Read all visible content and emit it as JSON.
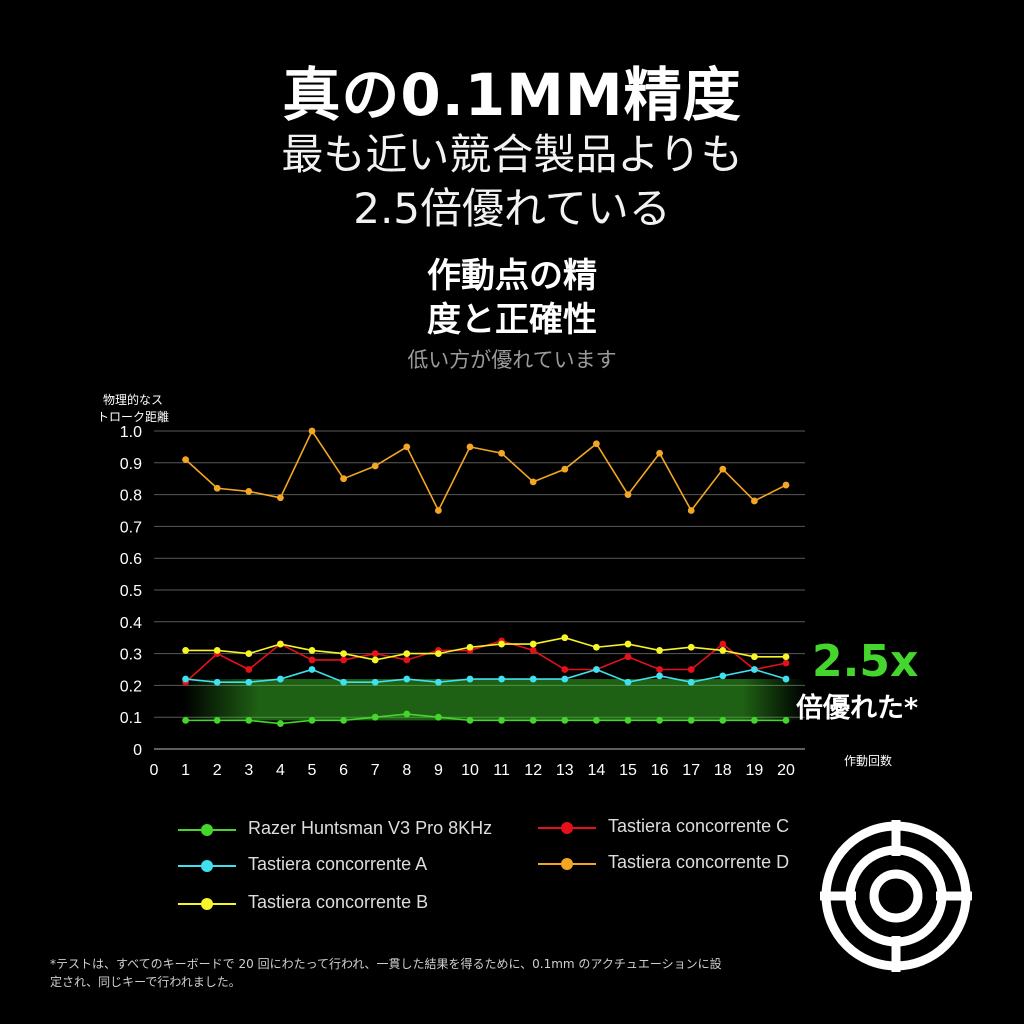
{
  "header": {
    "title": "真の0.1MM精度",
    "subtitle_line1": "最も近い競合製品よりも",
    "subtitle_line2": "2.5倍優れている",
    "section_line1": "作動点の精",
    "section_line2": "度と正確性",
    "section_note": "低い方が優れています"
  },
  "callout": {
    "value": "2.5x",
    "label": "倍優れた*"
  },
  "icons": {
    "target": "target-icon"
  },
  "footnote": {
    "line1": "*テストは、すべてのキーボードで 20 回にわたって行われ、一貫した結果を得るために、0.1mm のアクチュエーションに設",
    "line2": "定され、同じキーで行われました。"
  },
  "chart_data": {
    "type": "line",
    "ylabel_line1": "物理的なス",
    "ylabel_line2": "トローク距離",
    "xlabel": "作動回数",
    "x": [
      1,
      2,
      3,
      4,
      5,
      6,
      7,
      8,
      9,
      10,
      11,
      12,
      13,
      14,
      15,
      16,
      17,
      18,
      19,
      20
    ],
    "xlim": [
      0,
      20
    ],
    "ylim": [
      0,
      1.0
    ],
    "xticks": [
      "0",
      "1",
      "2",
      "3",
      "4",
      "5",
      "6",
      "7",
      "8",
      "9",
      "10",
      "11",
      "12",
      "13",
      "14",
      "15",
      "16",
      "17",
      "18",
      "19",
      "20"
    ],
    "yticks": [
      "0",
      "0.1",
      "0.2",
      "0.3",
      "0.4",
      "0.5",
      "0.6",
      "0.7",
      "0.8",
      "0.9",
      "1.0"
    ],
    "grid": true,
    "legend_position": "bottom",
    "series": [
      {
        "name": "Razer Huntsman V3 Pro 8KHz",
        "color": "#44d62c",
        "values": [
          0.09,
          0.09,
          0.09,
          0.08,
          0.09,
          0.09,
          0.1,
          0.11,
          0.1,
          0.09,
          0.09,
          0.09,
          0.09,
          0.09,
          0.09,
          0.09,
          0.09,
          0.09,
          0.09,
          0.09
        ]
      },
      {
        "name": "Tastiera concorrente A",
        "color": "#3fe0ef",
        "values": [
          0.22,
          0.21,
          0.21,
          0.22,
          0.25,
          0.21,
          0.21,
          0.22,
          0.21,
          0.22,
          0.22,
          0.22,
          0.22,
          0.25,
          0.21,
          0.23,
          0.21,
          0.23,
          0.25,
          0.22
        ]
      },
      {
        "name": "Tastiera concorrente B",
        "color": "#f5f52a",
        "values": [
          0.31,
          0.31,
          0.3,
          0.33,
          0.31,
          0.3,
          0.28,
          0.3,
          0.3,
          0.32,
          0.33,
          0.33,
          0.35,
          0.32,
          0.33,
          0.31,
          0.32,
          0.31,
          0.29,
          0.29
        ]
      },
      {
        "name": "Tastiera concorrente C",
        "color": "#e5101a",
        "values": [
          0.21,
          0.3,
          0.25,
          0.33,
          0.28,
          0.28,
          0.3,
          0.28,
          0.31,
          0.31,
          0.34,
          0.31,
          0.25,
          0.25,
          0.29,
          0.25,
          0.25,
          0.33,
          0.25,
          0.27
        ]
      },
      {
        "name": "Tastiera concorrente D",
        "color": "#f2a623",
        "values": [
          0.91,
          0.82,
          0.81,
          0.79,
          1.0,
          0.85,
          0.89,
          0.95,
          0.75,
          0.95,
          0.93,
          0.84,
          0.88,
          0.96,
          0.8,
          0.93,
          0.75,
          0.88,
          0.78,
          0.83
        ]
      }
    ]
  }
}
